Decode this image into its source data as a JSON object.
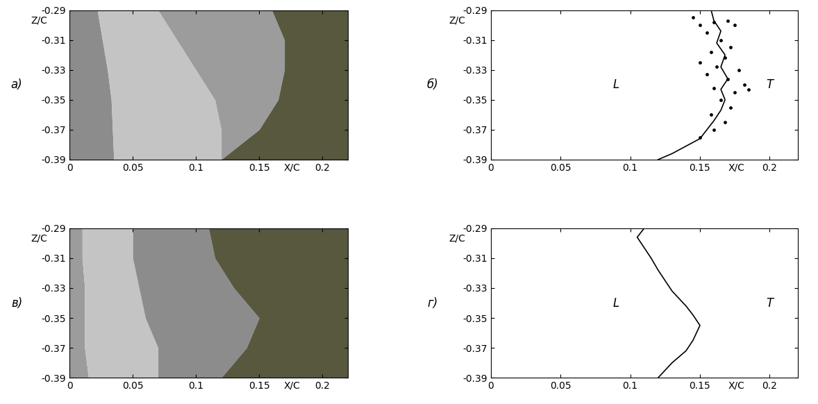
{
  "chart_data": [
    {
      "type": "region_map",
      "panel_label": "а)",
      "xlabel": "X/C",
      "ylabel": "Z/C",
      "xlim": [
        0,
        0.22
      ],
      "xticks": [
        0,
        0.05,
        0.1,
        0.15,
        0.2
      ],
      "ylim": [
        -0.39,
        -0.29
      ],
      "yticks": [
        -0.39,
        -0.37,
        -0.35,
        -0.33,
        -0.31,
        -0.29
      ],
      "z": [
        -0.39,
        -0.37,
        -0.35,
        -0.33,
        -0.31,
        -0.29
      ],
      "regions": [
        {
          "color": "#8c8c8c",
          "x_right": [
            0.035,
            0.034,
            0.033,
            0.03,
            0.026,
            0.022
          ]
        },
        {
          "color": "#c4c4c4",
          "x_right": [
            0.12,
            0.12,
            0.115,
            0.1,
            0.085,
            0.07
          ]
        },
        {
          "color": "#9c9c9c",
          "x_right": [
            0.12,
            0.15,
            0.165,
            0.17,
            0.17,
            0.16
          ]
        },
        {
          "color": "#58583f"
        }
      ]
    },
    {
      "type": "line",
      "panel_label": "б)",
      "xlabel": "X/C",
      "ylabel": "Z/C",
      "xlim": [
        0,
        0.22
      ],
      "xticks": [
        0,
        0.05,
        0.1,
        0.15,
        0.2
      ],
      "ylim": [
        -0.39,
        -0.29
      ],
      "yticks": [
        -0.39,
        -0.37,
        -0.35,
        -0.33,
        -0.31,
        -0.29
      ],
      "color": "#000000",
      "x": [
        0.12,
        0.13,
        0.14,
        0.15,
        0.155,
        0.16,
        0.165,
        0.168,
        0.165,
        0.17,
        0.165,
        0.168,
        0.162,
        0.165,
        0.16,
        0.158
      ],
      "z": [
        -0.39,
        -0.386,
        -0.381,
        -0.376,
        -0.37,
        -0.364,
        -0.357,
        -0.35,
        -0.343,
        -0.336,
        -0.328,
        -0.32,
        -0.312,
        -0.304,
        -0.297,
        -0.29
      ],
      "points": {
        "x": [
          0.145,
          0.15,
          0.16,
          0.17,
          0.175,
          0.155,
          0.165,
          0.172,
          0.158,
          0.168,
          0.15,
          0.162,
          0.178,
          0.155,
          0.17,
          0.182,
          0.16,
          0.175,
          0.185,
          0.165,
          0.172,
          0.158,
          0.168,
          0.16,
          0.15
        ],
        "z": [
          -0.295,
          -0.3,
          -0.298,
          -0.297,
          -0.3,
          -0.305,
          -0.31,
          -0.315,
          -0.318,
          -0.322,
          -0.325,
          -0.328,
          -0.33,
          -0.333,
          -0.336,
          -0.34,
          -0.342,
          -0.345,
          -0.343,
          -0.35,
          -0.355,
          -0.36,
          -0.365,
          -0.37,
          -0.375
        ]
      },
      "annotations": [
        {
          "text": "L",
          "x": 0.09,
          "z": -0.34
        },
        {
          "text": "T",
          "x": 0.2,
          "z": -0.34
        }
      ]
    },
    {
      "type": "region_map",
      "panel_label": "в)",
      "xlabel": "X/C",
      "ylabel": "Z/C",
      "xlim": [
        0,
        0.22
      ],
      "xticks": [
        0,
        0.05,
        0.1,
        0.15,
        0.2
      ],
      "ylim": [
        -0.39,
        -0.29
      ],
      "yticks": [
        -0.39,
        -0.37,
        -0.35,
        -0.33,
        -0.31,
        -0.29
      ],
      "z": [
        -0.39,
        -0.37,
        -0.35,
        -0.33,
        -0.31,
        -0.29
      ],
      "regions": [
        {
          "color": "#9c9c9c",
          "x_right": [
            0.015,
            0.012,
            0.012,
            0.012,
            0.01,
            0.01
          ]
        },
        {
          "color": "#c4c4c4",
          "x_right": [
            0.07,
            0.07,
            0.06,
            0.055,
            0.05,
            0.05
          ]
        },
        {
          "color": "#8c8c8c",
          "x_right": [
            0.12,
            0.14,
            0.15,
            0.13,
            0.115,
            0.11
          ]
        },
        {
          "color": "#58583f"
        }
      ]
    },
    {
      "type": "line",
      "panel_label": "г)",
      "xlabel": "X/C",
      "ylabel": "Z/C",
      "xlim": [
        0,
        0.22
      ],
      "xticks": [
        0,
        0.05,
        0.1,
        0.15,
        0.2
      ],
      "ylim": [
        -0.39,
        -0.29
      ],
      "yticks": [
        -0.39,
        -0.37,
        -0.35,
        -0.33,
        -0.31,
        -0.29
      ],
      "color": "#000000",
      "x": [
        0.12,
        0.13,
        0.14,
        0.145,
        0.15,
        0.145,
        0.14,
        0.135,
        0.13,
        0.125,
        0.12,
        0.115,
        0.11,
        0.105,
        0.11
      ],
      "z": [
        -0.39,
        -0.38,
        -0.372,
        -0.365,
        -0.355,
        -0.348,
        -0.342,
        -0.337,
        -0.332,
        -0.325,
        -0.318,
        -0.31,
        -0.303,
        -0.296,
        -0.29
      ],
      "annotations": [
        {
          "text": "L",
          "x": 0.09,
          "z": -0.34
        },
        {
          "text": "T",
          "x": 0.2,
          "z": -0.34
        }
      ]
    }
  ]
}
